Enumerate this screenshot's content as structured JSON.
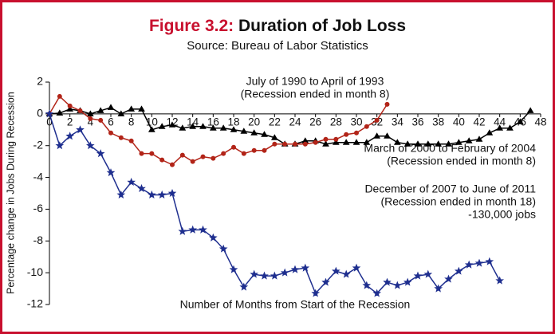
{
  "chart_data": {
    "type": "line",
    "title_label": "Figure 3.2:",
    "title": "Duration of Job Loss",
    "subtitle": "Source: Bureau of Labor Statistics",
    "y_label": "Percentage change in Jobs During Recession",
    "x_label": "Number of Months from Start of the Recession",
    "x": [
      0,
      1,
      2,
      3,
      4,
      5,
      6,
      7,
      8,
      9,
      10,
      11,
      12,
      13,
      14,
      15,
      16,
      17,
      18,
      19,
      20,
      21,
      22,
      23,
      24,
      25,
      26,
      27,
      28,
      29,
      30,
      31,
      32,
      33,
      34,
      35,
      36,
      37,
      38,
      39,
      40,
      41,
      42,
      43,
      44,
      45,
      46,
      47
    ],
    "xlim": [
      0,
      48
    ],
    "xticks": [
      0,
      2,
      4,
      6,
      8,
      10,
      12,
      14,
      16,
      18,
      20,
      22,
      24,
      26,
      28,
      30,
      32,
      34,
      36,
      38,
      40,
      42,
      44,
      46,
      48
    ],
    "ylim": [
      -12,
      2
    ],
    "yticks": [
      2,
      0,
      -2,
      -4,
      -6,
      -8,
      -10,
      -12
    ],
    "series": [
      {
        "name": "July of 1990 to April of 1993",
        "color": "#000000",
        "marker": "triangle",
        "values": [
          0,
          0.05,
          0.3,
          0.2,
          0,
          0.2,
          0.4,
          0,
          0.3,
          0.3,
          -1.0,
          -0.8,
          -0.7,
          -0.9,
          -0.8,
          -0.8,
          -0.9,
          -0.9,
          -1.0,
          -1.1,
          -1.2,
          -1.3,
          -1.5,
          -1.9,
          -1.9,
          -1.7,
          -1.7,
          -1.9,
          -1.8,
          -1.8,
          -1.8,
          -1.8,
          -1.4,
          -1.4,
          -1.8,
          -1.9,
          -1.9,
          -1.9,
          -1.9,
          -1.9,
          -1.8,
          -1.7,
          -1.6,
          -1.2,
          -0.9,
          -0.9,
          -0.5,
          0.2
        ]
      },
      {
        "name": "March of 2000 to February of 2004",
        "color": "#b22418",
        "marker": "circle",
        "values": [
          0,
          1.1,
          0.5,
          0.2,
          -0.3,
          -0.4,
          -1.2,
          -1.5,
          -1.7,
          -2.5,
          -2.5,
          -2.9,
          -3.2,
          -2.6,
          -3.0,
          -2.7,
          -2.8,
          -2.5,
          -2.1,
          -2.5,
          -2.3,
          -2.3,
          -1.9,
          -1.9,
          -1.9,
          -1.9,
          -1.8,
          -1.6,
          -1.6,
          -1.3,
          -1.2,
          -0.8,
          -0.4,
          0.6,
          null,
          null,
          null,
          null,
          null,
          null,
          null,
          null,
          null,
          null,
          null,
          null,
          null,
          null
        ]
      },
      {
        "name": "December of 2007 to June of 2011",
        "color": "#1f2f8f",
        "marker": "star",
        "values": [
          0,
          -2.0,
          -1.4,
          -1.0,
          -2.0,
          -2.5,
          -3.7,
          -5.1,
          -4.3,
          -4.7,
          -5.1,
          -5.1,
          -5.0,
          -7.4,
          -7.3,
          -7.3,
          -7.8,
          -8.5,
          -9.8,
          -10.9,
          -10.1,
          -10.2,
          -10.2,
          -10.0,
          -9.8,
          -9.7,
          -11.3,
          -10.6,
          -9.9,
          -10.1,
          -9.7,
          -10.8,
          -11.3,
          -10.6,
          -10.8,
          -10.6,
          -10.2,
          -10.1,
          -11.0,
          -10.4,
          -9.9,
          -9.5,
          -9.4,
          -9.3,
          -10.5,
          null,
          null,
          null
        ]
      }
    ],
    "annotations": [
      "(Recession ended in month 8)",
      "(Recession ended in month 8)",
      "(Recession ended in month 18)",
      "-130,000 jobs"
    ]
  }
}
